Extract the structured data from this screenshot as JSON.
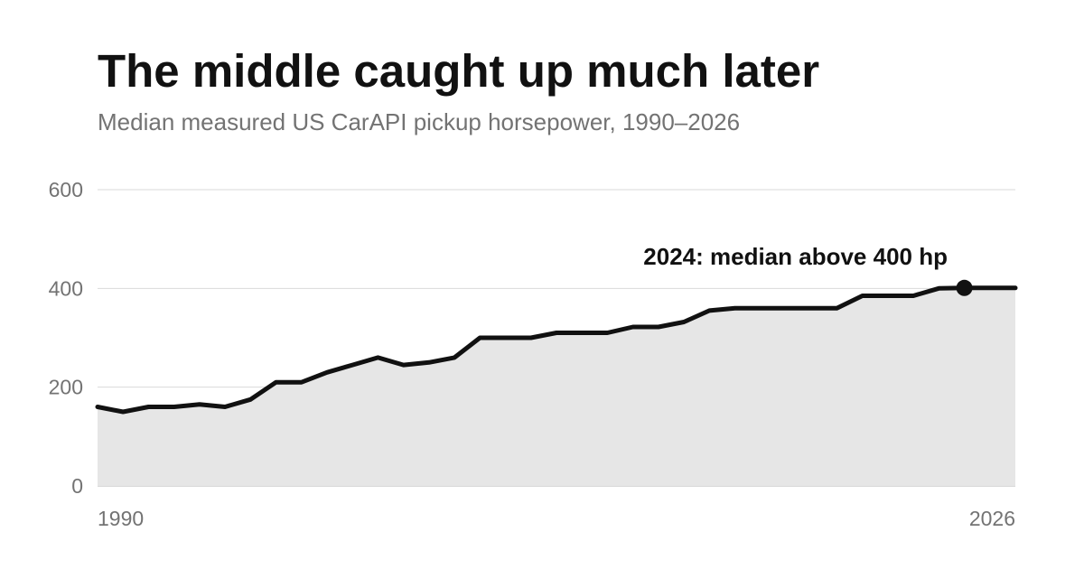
{
  "header": {
    "title": "The middle caught up much later",
    "subtitle": "Median measured US CarAPI pickup horsepower, 1990–2026"
  },
  "chart_data": {
    "type": "area",
    "title": "The middle caught up much later",
    "subtitle": "Median measured US CarAPI pickup horsepower, 1990–2026",
    "xlabel": "",
    "ylabel": "",
    "x": [
      1990,
      1991,
      1992,
      1993,
      1994,
      1995,
      1996,
      1997,
      1998,
      1999,
      2000,
      2001,
      2002,
      2003,
      2004,
      2005,
      2006,
      2007,
      2008,
      2009,
      2010,
      2011,
      2012,
      2013,
      2014,
      2015,
      2016,
      2017,
      2018,
      2019,
      2020,
      2021,
      2022,
      2023,
      2024,
      2025,
      2026
    ],
    "series": [
      {
        "values": [
          160,
          150,
          160,
          160,
          165,
          160,
          175,
          210,
          210,
          230,
          245,
          260,
          245,
          250,
          260,
          300,
          300,
          300,
          310,
          310,
          310,
          322,
          322,
          332,
          355,
          360,
          360,
          360,
          360,
          360,
          385,
          385,
          385,
          400,
          401,
          401,
          401
        ]
      }
    ],
    "xlim": [
      1990,
      2026
    ],
    "ylim": [
      0,
      600
    ],
    "x_ticks": [
      "1990",
      "2026"
    ],
    "y_ticks": [
      "0",
      "200",
      "400",
      "600"
    ],
    "grid": true,
    "highlight": {
      "x": 2024,
      "y": 401
    },
    "annotation": "2024: median above 400 hp",
    "colors": {
      "line": "#111111",
      "area": "#e6e6e6",
      "grid": "#d9d9d9",
      "axis": "#cccccc",
      "tick_text": "#737373",
      "marker": "#111111"
    }
  }
}
